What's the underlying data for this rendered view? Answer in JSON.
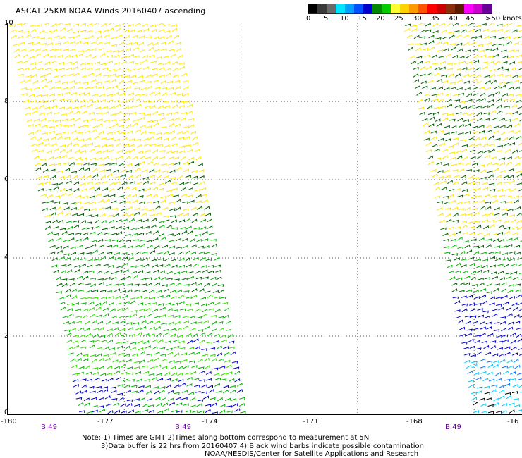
{
  "title": "ASCAT 25KM NOAA Winds 20160407 ascending",
  "legend": {
    "colors": [
      "#000000",
      "#3a3a3a",
      "#6a6a6a",
      "#00e5ff",
      "#00a0ff",
      "#0050ff",
      "#0000cc",
      "#008800",
      "#00cc00",
      "#ffff33",
      "#ffd200",
      "#ff9900",
      "#ff5500",
      "#ff0000",
      "#cc0000",
      "#8b2e0b",
      "#5c1a00",
      "#ff00ff",
      "#cc00cc",
      "#660099"
    ],
    "labels": [
      "0",
      "5",
      "10",
      "15",
      "20",
      "25",
      "30",
      "35",
      "40",
      "45",
      ">50 knots"
    ]
  },
  "y_ticks": [
    "10",
    "8",
    "6",
    "4",
    "2",
    "0"
  ],
  "x_ticks": [
    "-180",
    "-177",
    "-174",
    "-171",
    "-168",
    "-16"
  ],
  "time_labels": [
    "B:49",
    "B:49",
    "B:49"
  ],
  "notes": [
    "Note: 1) Times are GMT 2)Times along bottom correspond to measurement at 5N",
    "3)Data buffer is 22 hrs from 20160407 4) Black wind barbs indicate possible contamination",
    "NOAA/NESDIS/Center for Satellite Applications and Research"
  ],
  "map": {
    "lon_range": [
      -180,
      -166.75
    ],
    "lat_range": [
      0,
      10
    ],
    "grid": true,
    "wind_colors": {
      "yellow": "#ffe600",
      "darkgreen": "#006400",
      "green": "#00b400",
      "lightgreen": "#33dd00",
      "blue": "#0000cc",
      "lightblue": "#0077ff",
      "cyan": "#00ccff",
      "black": "#000000"
    }
  }
}
